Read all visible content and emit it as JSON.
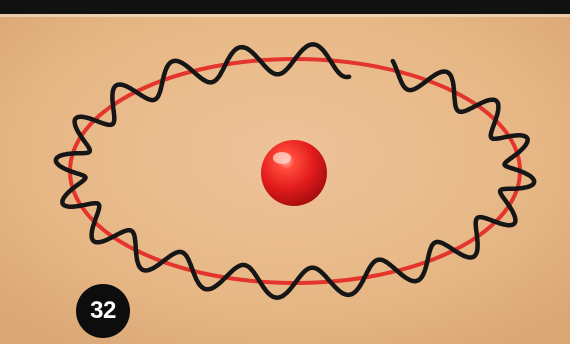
{
  "figure": {
    "number_label": "32",
    "background_color": "#e6b98b",
    "top_rule_color": "#111111",
    "orbit_color": "#e3342d",
    "wave_color": "#161616",
    "nucleus_color": "#e21c1c"
  }
}
